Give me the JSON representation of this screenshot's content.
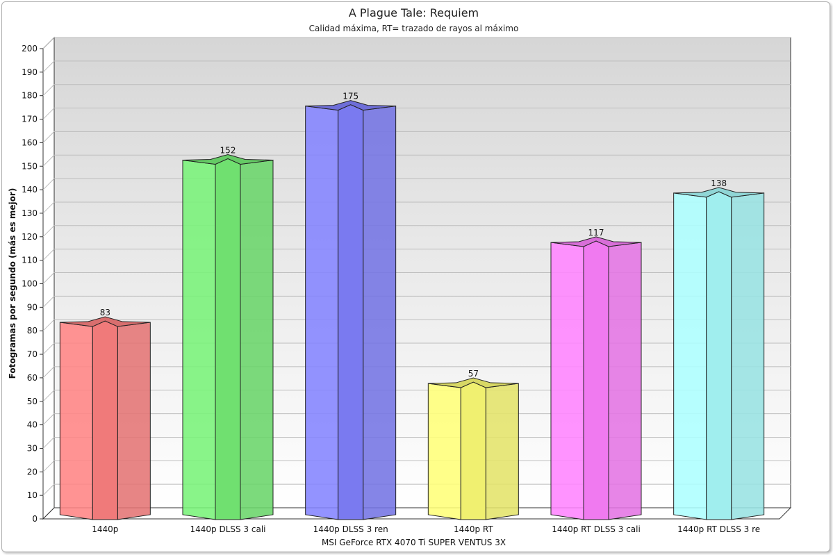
{
  "chart_data": {
    "type": "bar",
    "title": "A Plague Tale: Requiem",
    "subtitle": "Calidad máxima, RT= trazado de rayos al máximo",
    "xlabel": "MSI GeForce RTX 4070 Ti SUPER VENTUS 3X",
    "ylabel": "Fotogramas por segundo (más es mejor)",
    "ylim": [
      0,
      200
    ],
    "yticks": [
      0,
      10,
      20,
      30,
      40,
      50,
      60,
      70,
      80,
      90,
      100,
      110,
      120,
      130,
      140,
      150,
      160,
      170,
      180,
      190,
      200
    ],
    "grid": true,
    "categories": [
      "1440p",
      "1440p DLSS 3 cali",
      "1440p DLSS 3 ren",
      "1440p RT",
      "1440p RT DLSS 3 cali",
      "1440p RT DLSS 3 re"
    ],
    "values": [
      83,
      152,
      175,
      57,
      117,
      138
    ],
    "colors": [
      "#f07a7a",
      "#70e070",
      "#7a7af0",
      "#f0f070",
      "#f07af0",
      "#a0eeee"
    ]
  }
}
